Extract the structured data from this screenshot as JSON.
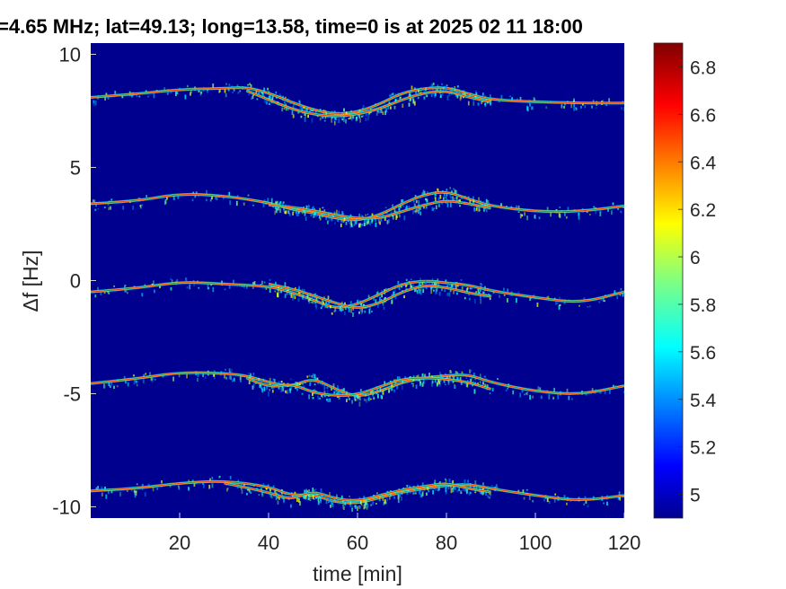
{
  "chart_data": {
    "type": "heatmap",
    "title": "=4.65 MHz;  lat=49.13; long=13.58, time=0 is at 2025 02 11 18:00",
    "xlabel": "time [min]",
    "ylabel": "Δf [Hz]",
    "xlim": [
      0,
      120
    ],
    "ylim": [
      -10.5,
      10.5
    ],
    "x_ticks": [
      20,
      40,
      60,
      80,
      100,
      120
    ],
    "y_ticks": [
      -10,
      -5,
      0,
      5,
      10
    ],
    "x_tick_labels": [
      "20",
      "40",
      "60",
      "80",
      "100",
      "120"
    ],
    "y_tick_labels": [
      "-10",
      "-5",
      "0",
      "5",
      "10"
    ],
    "background_color": "#00008f",
    "colormap": "jet",
    "colorbar": {
      "range": [
        4.9,
        6.9
      ],
      "ticks": [
        5,
        5.2,
        5.4,
        5.6,
        5.8,
        6,
        6.2,
        6.4,
        6.6,
        6.8
      ],
      "tick_labels": [
        "5",
        "5.2",
        "5.4",
        "5.6",
        "5.8",
        "6",
        "6.2",
        "6.4",
        "6.6",
        "6.8"
      ]
    },
    "series": [
      {
        "values": [
          [
            0,
            8.1
          ],
          [
            10,
            8.25
          ],
          [
            20,
            8.45
          ],
          [
            30,
            8.5
          ],
          [
            35,
            8.55
          ],
          [
            40,
            8.3
          ],
          [
            45,
            7.9
          ],
          [
            50,
            7.55
          ],
          [
            55,
            7.35
          ],
          [
            60,
            7.45
          ],
          [
            65,
            7.8
          ],
          [
            70,
            8.3
          ],
          [
            75,
            8.5
          ],
          [
            80,
            8.55
          ],
          [
            85,
            8.25
          ],
          [
            90,
            8.0
          ],
          [
            100,
            7.9
          ],
          [
            110,
            7.85
          ],
          [
            120,
            7.85
          ]
        ]
      },
      {
        "values": [
          [
            35,
            8.4
          ],
          [
            40,
            8.0
          ],
          [
            45,
            7.6
          ],
          [
            50,
            7.35
          ],
          [
            55,
            7.25
          ],
          [
            60,
            7.35
          ],
          [
            65,
            7.6
          ],
          [
            70,
            8.0
          ],
          [
            75,
            8.3
          ],
          [
            80,
            8.4
          ],
          [
            85,
            8.1
          ],
          [
            90,
            7.9
          ]
        ]
      },
      {
        "values": [
          [
            0,
            3.4
          ],
          [
            10,
            3.5
          ],
          [
            20,
            3.85
          ],
          [
            30,
            3.75
          ],
          [
            40,
            3.45
          ],
          [
            45,
            3.15
          ],
          [
            50,
            3.0
          ],
          [
            55,
            2.75
          ],
          [
            60,
            2.65
          ],
          [
            65,
            2.9
          ],
          [
            70,
            3.4
          ],
          [
            75,
            3.8
          ],
          [
            80,
            3.95
          ],
          [
            85,
            3.6
          ],
          [
            90,
            3.3
          ],
          [
            100,
            3.05
          ],
          [
            110,
            3.05
          ],
          [
            120,
            3.3
          ]
        ]
      },
      {
        "values": [
          [
            40,
            3.35
          ],
          [
            45,
            3.25
          ],
          [
            50,
            3.1
          ],
          [
            55,
            2.9
          ],
          [
            60,
            2.75
          ],
          [
            65,
            2.75
          ],
          [
            70,
            3.05
          ],
          [
            75,
            3.35
          ],
          [
            80,
            3.55
          ],
          [
            85,
            3.4
          ],
          [
            90,
            3.2
          ]
        ]
      },
      {
        "values": [
          [
            0,
            -0.5
          ],
          [
            10,
            -0.35
          ],
          [
            20,
            -0.05
          ],
          [
            30,
            -0.15
          ],
          [
            40,
            -0.25
          ],
          [
            45,
            -0.5
          ],
          [
            50,
            -0.85
          ],
          [
            55,
            -1.25
          ],
          [
            60,
            -1.05
          ],
          [
            65,
            -0.6
          ],
          [
            70,
            -0.15
          ],
          [
            75,
            0.0
          ],
          [
            80,
            -0.1
          ],
          [
            85,
            -0.2
          ],
          [
            90,
            -0.45
          ],
          [
            100,
            -0.75
          ],
          [
            110,
            -1.0
          ],
          [
            120,
            -0.5
          ]
        ]
      },
      {
        "values": [
          [
            40,
            -0.15
          ],
          [
            45,
            -0.35
          ],
          [
            50,
            -0.65
          ],
          [
            55,
            -1.0
          ],
          [
            60,
            -1.25
          ],
          [
            65,
            -1.0
          ],
          [
            70,
            -0.5
          ],
          [
            75,
            -0.2
          ],
          [
            80,
            -0.3
          ],
          [
            85,
            -0.55
          ],
          [
            90,
            -0.7
          ]
        ]
      },
      {
        "values": [
          [
            0,
            -4.55
          ],
          [
            10,
            -4.35
          ],
          [
            20,
            -4.05
          ],
          [
            30,
            -4.1
          ],
          [
            35,
            -4.2
          ],
          [
            40,
            -4.5
          ],
          [
            45,
            -4.7
          ],
          [
            50,
            -4.3
          ],
          [
            55,
            -4.8
          ],
          [
            60,
            -5.15
          ],
          [
            65,
            -4.9
          ],
          [
            70,
            -4.5
          ],
          [
            75,
            -4.3
          ],
          [
            80,
            -4.2
          ],
          [
            85,
            -4.15
          ],
          [
            90,
            -4.5
          ],
          [
            100,
            -4.9
          ],
          [
            110,
            -5.05
          ],
          [
            120,
            -4.65
          ]
        ]
      },
      {
        "values": [
          [
            35,
            -4.3
          ],
          [
            40,
            -4.75
          ],
          [
            45,
            -4.55
          ],
          [
            50,
            -4.95
          ],
          [
            55,
            -5.1
          ],
          [
            60,
            -5.05
          ],
          [
            65,
            -4.7
          ],
          [
            70,
            -4.35
          ],
          [
            75,
            -4.3
          ],
          [
            80,
            -4.35
          ],
          [
            85,
            -4.5
          ],
          [
            90,
            -4.8
          ]
        ]
      },
      {
        "values": [
          [
            0,
            -9.3
          ],
          [
            10,
            -9.2
          ],
          [
            20,
            -8.95
          ],
          [
            30,
            -8.85
          ],
          [
            40,
            -9.1
          ],
          [
            45,
            -9.5
          ],
          [
            50,
            -9.45
          ],
          [
            55,
            -9.8
          ],
          [
            60,
            -9.85
          ],
          [
            65,
            -9.6
          ],
          [
            70,
            -9.35
          ],
          [
            75,
            -9.2
          ],
          [
            80,
            -9.05
          ],
          [
            85,
            -9.0
          ],
          [
            90,
            -9.2
          ],
          [
            100,
            -9.5
          ],
          [
            110,
            -9.75
          ],
          [
            120,
            -9.5
          ]
        ]
      },
      {
        "values": [
          [
            30,
            -8.95
          ],
          [
            40,
            -9.35
          ],
          [
            45,
            -9.7
          ],
          [
            50,
            -9.3
          ],
          [
            55,
            -9.65
          ],
          [
            60,
            -9.75
          ],
          [
            65,
            -9.5
          ],
          [
            70,
            -9.25
          ],
          [
            75,
            -9.1
          ],
          [
            80,
            -8.95
          ],
          [
            85,
            -9.2
          ],
          [
            90,
            -9.35
          ]
        ]
      }
    ]
  }
}
